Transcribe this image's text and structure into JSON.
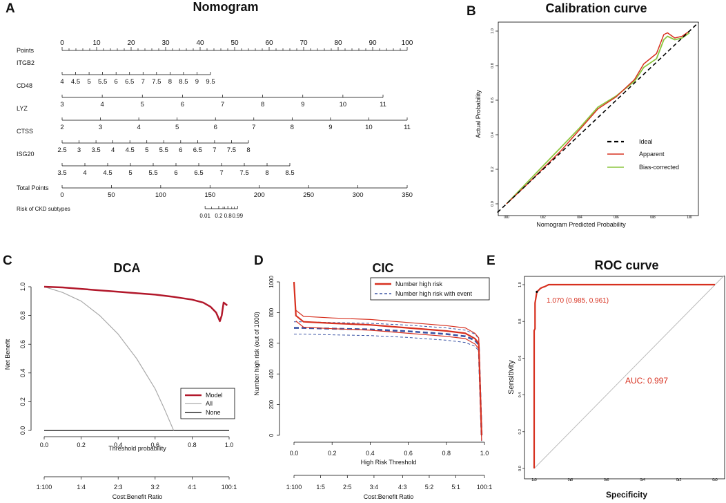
{
  "chart_data": [
    {
      "panel": "A",
      "type": "nomogram",
      "title": "Nomogram",
      "rows": [
        {
          "label": "Points",
          "ticks": [
            "0",
            "10",
            "20",
            "30",
            "40",
            "50",
            "60",
            "70",
            "80",
            "90",
            "100"
          ],
          "minor": 50
        },
        {
          "label": "ITGB2",
          "ticks": [
            "4",
            "4.5",
            "5",
            "5.5",
            "6",
            "6.5",
            "7",
            "7.5",
            "8",
            "8.5",
            "9",
            "9.5"
          ],
          "range": [
            0,
            43
          ]
        },
        {
          "label": "CD48",
          "ticks": [
            "3",
            "4",
            "5",
            "6",
            "7",
            "8",
            "9",
            "10",
            "11"
          ],
          "range": [
            0,
            93
          ]
        },
        {
          "label": "LYZ",
          "ticks": [
            "2",
            "3",
            "4",
            "5",
            "6",
            "7",
            "8",
            "9",
            "10",
            "11"
          ],
          "range": [
            0,
            100
          ]
        },
        {
          "label": "CTSS",
          "ticks": [
            "2.5",
            "3",
            "3.5",
            "4",
            "4.5",
            "5",
            "5.5",
            "6",
            "6.5",
            "7",
            "7.5",
            "8"
          ],
          "range": [
            0,
            54
          ]
        },
        {
          "label": "ISG20",
          "ticks": [
            "3.5",
            "4",
            "4.5",
            "5",
            "5.5",
            "6",
            "6.5",
            "7",
            "7.5",
            "8",
            "8.5"
          ],
          "range": [
            0,
            66
          ]
        },
        {
          "label": "Total Points",
          "ticks": [
            "0",
            "50",
            "100",
            "150",
            "200",
            "250",
            "300",
            "350"
          ],
          "range": [
            0,
            350
          ]
        },
        {
          "label": "Risk of CKD subtypes",
          "ticks": [
            "0.01",
            "0.2",
            "0.8",
            "0.99"
          ],
          "range": [
            145,
            178
          ]
        }
      ]
    },
    {
      "panel": "B",
      "type": "line",
      "title": "Calibration curve",
      "xlabel": "Nomogram Predicted Probability",
      "ylabel": "Actual Probability",
      "xlim": [
        0,
        1
      ],
      "ylim": [
        0,
        1
      ],
      "ticks": [
        "0.0",
        "0.2",
        "0.4",
        "0.6",
        "0.8",
        "1.0"
      ],
      "series": [
        {
          "name": "Ideal",
          "color": "#000000",
          "style": "dashed",
          "points": [
            [
              0,
              0
            ],
            [
              1,
              1
            ]
          ]
        },
        {
          "name": "Apparent",
          "color": "#d7301f",
          "points": [
            [
              0,
              0
            ],
            [
              0.1,
              0.1
            ],
            [
              0.2,
              0.205
            ],
            [
              0.3,
              0.31
            ],
            [
              0.4,
              0.43
            ],
            [
              0.5,
              0.55
            ],
            [
              0.6,
              0.62
            ],
            [
              0.7,
              0.72
            ],
            [
              0.75,
              0.81
            ],
            [
              0.82,
              0.87
            ],
            [
              0.86,
              0.98
            ],
            [
              0.88,
              0.99
            ],
            [
              0.92,
              0.96
            ],
            [
              0.96,
              0.97
            ],
            [
              1.0,
              1.0
            ]
          ]
        },
        {
          "name": "Bias-corrected",
          "color": "#8cc63f",
          "points": [
            [
              0,
              0
            ],
            [
              0.1,
              0.11
            ],
            [
              0.2,
              0.22
            ],
            [
              0.3,
              0.33
            ],
            [
              0.4,
              0.44
            ],
            [
              0.5,
              0.56
            ],
            [
              0.6,
              0.625
            ],
            [
              0.7,
              0.71
            ],
            [
              0.75,
              0.79
            ],
            [
              0.82,
              0.84
            ],
            [
              0.86,
              0.95
            ],
            [
              0.88,
              0.97
            ],
            [
              0.92,
              0.95
            ],
            [
              0.96,
              0.96
            ],
            [
              1.0,
              0.99
            ]
          ]
        }
      ],
      "legend": [
        "Ideal",
        "Apparent",
        "Bias-corrected"
      ]
    },
    {
      "panel": "C",
      "type": "line",
      "title": "DCA",
      "xlabel": "Threshold probability",
      "ylabel": "Net Benefit",
      "xlim": [
        0,
        1
      ],
      "ylim": [
        0,
        1
      ],
      "xticks": [
        "0.0",
        "0.2",
        "0.4",
        "0.6",
        "0.8",
        "1.0"
      ],
      "yticks": [
        "0.0",
        "0.2",
        "0.4",
        "0.6",
        "0.8",
        "1.0"
      ],
      "cb_label": "Cost:Benefit Ratio",
      "cb_ticks": [
        "1:100",
        "1:4",
        "2:3",
        "3:2",
        "4:1",
        "100:1"
      ],
      "series": [
        {
          "name": "Model",
          "color": "#b2182b",
          "points": [
            [
              0,
              1.0
            ],
            [
              0.1,
              0.995
            ],
            [
              0.2,
              0.985
            ],
            [
              0.3,
              0.975
            ],
            [
              0.4,
              0.965
            ],
            [
              0.5,
              0.955
            ],
            [
              0.6,
              0.945
            ],
            [
              0.7,
              0.93
            ],
            [
              0.8,
              0.91
            ],
            [
              0.86,
              0.89
            ],
            [
              0.9,
              0.86
            ],
            [
              0.93,
              0.82
            ],
            [
              0.95,
              0.76
            ],
            [
              0.96,
              0.8
            ],
            [
              0.97,
              0.89
            ],
            [
              0.99,
              0.87
            ]
          ]
        },
        {
          "name": "All",
          "color": "#aaaaaa",
          "points": [
            [
              0,
              1.0
            ],
            [
              0.1,
              0.96
            ],
            [
              0.2,
              0.9
            ],
            [
              0.3,
              0.8
            ],
            [
              0.4,
              0.67
            ],
            [
              0.5,
              0.5
            ],
            [
              0.6,
              0.29
            ],
            [
              0.65,
              0.15
            ],
            [
              0.7,
              0.0
            ]
          ]
        },
        {
          "name": "None",
          "color": "#000000",
          "points": [
            [
              0,
              0
            ],
            [
              1,
              0
            ]
          ]
        }
      ],
      "legend": [
        "Model",
        "All",
        "None"
      ]
    },
    {
      "panel": "D",
      "type": "line",
      "title": "CIC",
      "xlabel": "High Risk Threshold",
      "ylabel": "Number high risk (out of 1000)",
      "xlim": [
        0,
        1
      ],
      "ylim": [
        0,
        1000
      ],
      "xticks": [
        "0.0",
        "0.2",
        "0.4",
        "0.6",
        "0.8",
        "1.0"
      ],
      "yticks": [
        "0",
        "200",
        "400",
        "600",
        "800",
        "1000"
      ],
      "cb_label": "Cost:Benefit Ratio",
      "cb_ticks": [
        "1:100",
        "1:5",
        "2:5",
        "3:4",
        "4:3",
        "5:2",
        "5:1",
        "100:1"
      ],
      "series": [
        {
          "name": "Number high risk",
          "color": "#d7301f",
          "points": [
            [
              0,
              1000
            ],
            [
              0.01,
              780
            ],
            [
              0.05,
              740
            ],
            [
              0.2,
              730
            ],
            [
              0.4,
              720
            ],
            [
              0.6,
              700
            ],
            [
              0.8,
              680
            ],
            [
              0.9,
              665
            ],
            [
              0.95,
              630
            ],
            [
              0.97,
              600
            ],
            [
              0.985,
              0
            ]
          ]
        },
        {
          "name": "Number high risk with event",
          "color": "#3a53a4",
          "style": "dashed",
          "points": [
            [
              0,
              700
            ],
            [
              0.05,
              700
            ],
            [
              0.2,
              695
            ],
            [
              0.4,
              690
            ],
            [
              0.6,
              678
            ],
            [
              0.8,
              660
            ],
            [
              0.9,
              645
            ],
            [
              0.95,
              620
            ],
            [
              0.97,
              590
            ],
            [
              0.985,
              0
            ]
          ]
        }
      ],
      "legend": [
        "Number high risk",
        "Number high risk with event"
      ]
    },
    {
      "panel": "E",
      "type": "line",
      "title": "ROC curve",
      "xlabel": "Specificity",
      "ylabel": "Sensitivity",
      "xticks": [
        "1.0",
        "0.8",
        "0.6",
        "0.4",
        "0.2",
        "0.0"
      ],
      "yticks": [
        "0.0",
        "0.2",
        "0.4",
        "0.6",
        "0.8",
        "1.0"
      ],
      "annotation": "1.070 (0.985, 0.961)",
      "auc_label": "AUC: 0.997",
      "series": [
        {
          "name": "ROC",
          "color": "#d7301f",
          "points": [
            [
              1.0,
              0
            ],
            [
              1.0,
              0.75
            ],
            [
              0.995,
              0.76
            ],
            [
              0.995,
              0.9
            ],
            [
              0.99,
              0.93
            ],
            [
              0.985,
              0.96
            ],
            [
              0.975,
              0.97
            ],
            [
              0.965,
              0.98
            ],
            [
              0.955,
              0.985
            ],
            [
              0.94,
              0.99
            ],
            [
              0.92,
              1.0
            ],
            [
              0,
              1.0
            ]
          ]
        }
      ]
    }
  ]
}
